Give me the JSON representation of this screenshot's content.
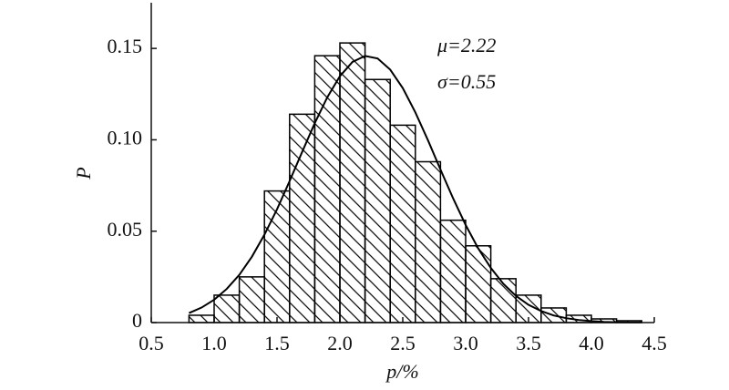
{
  "chart_data": {
    "type": "histogram",
    "xlabel": "p/%",
    "ylabel": "P",
    "annotations": [
      "μ=2.22",
      "σ=0.55"
    ],
    "bins": [
      0.8,
      1.0,
      1.2,
      1.4,
      1.6,
      1.8,
      2.0,
      2.2,
      2.4,
      2.6,
      2.8,
      3.0,
      3.2,
      3.4,
      3.6,
      3.8,
      4.0,
      4.2,
      4.4
    ],
    "values": [
      0.004,
      0.015,
      0.025,
      0.072,
      0.114,
      0.146,
      0.153,
      0.133,
      0.108,
      0.088,
      0.056,
      0.042,
      0.024,
      0.015,
      0.008,
      0.004,
      0.002,
      0.001
    ],
    "color": "#000000",
    "curve": {
      "x": [
        0.8,
        0.9,
        1.0,
        1.1,
        1.2,
        1.3,
        1.4,
        1.5,
        1.6,
        1.7,
        1.8,
        1.9,
        2.0,
        2.1,
        2.2,
        2.3,
        2.4,
        2.5,
        2.6,
        2.7,
        2.8,
        2.9,
        3.0,
        3.1,
        3.2,
        3.3,
        3.4,
        3.5,
        3.6,
        3.7,
        3.8,
        3.9,
        4.0,
        4.1,
        4.2,
        4.3,
        4.4
      ],
      "values": [
        0.0052,
        0.0082,
        0.0125,
        0.0184,
        0.0261,
        0.036,
        0.0481,
        0.062,
        0.0774,
        0.0934,
        0.1091,
        0.1233,
        0.1348,
        0.1426,
        0.1459,
        0.1445,
        0.1384,
        0.1283,
        0.115,
        0.0998,
        0.0837,
        0.068,
        0.0534,
        0.0406,
        0.0299,
        0.0212,
        0.0146,
        0.0097,
        0.0063,
        0.0039,
        0.0024,
        0.0014,
        0.0008,
        0.0004,
        0.0002,
        0.0001,
        0.0001
      ]
    },
    "xlim": [
      0.5,
      4.5
    ],
    "ylim": [
      0,
      0.175
    ],
    "xticks": [
      0.5,
      {
        "value": 1,
        "label": "1.0"
      },
      1.5,
      {
        "value": 2,
        "label": "2.0"
      },
      2.5,
      {
        "value": 3,
        "label": "3.0"
      },
      3.5,
      {
        "value": 4,
        "label": "4.0"
      },
      4.5
    ],
    "yticks": [
      0,
      0.05,
      {
        "value": 0.1,
        "label": "0.10"
      },
      0.15
    ]
  }
}
